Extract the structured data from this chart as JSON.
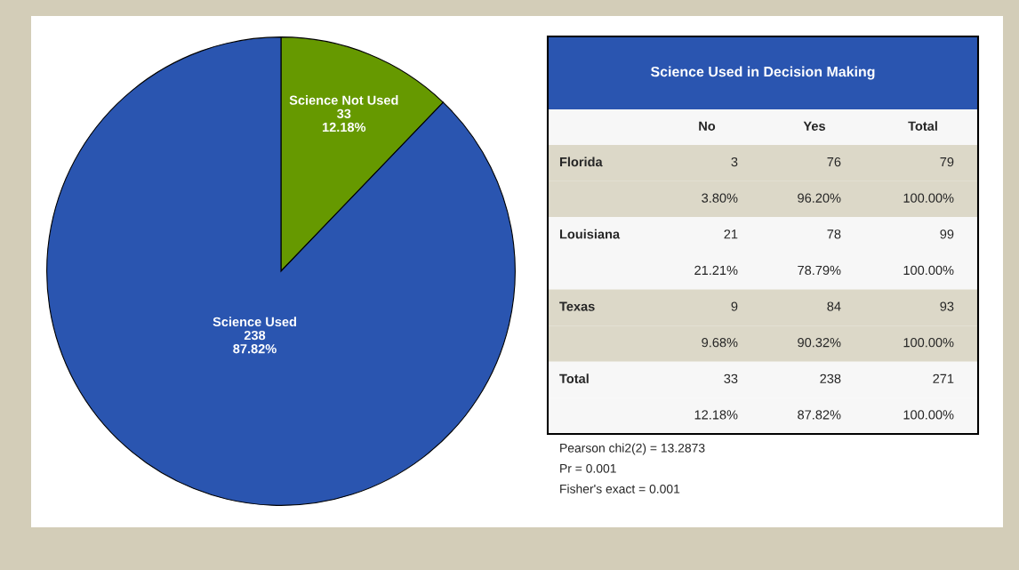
{
  "chart_data": [
    {
      "type": "pie",
      "categories": [
        "Science Not Used",
        "Science Used"
      ],
      "values": [
        33,
        238
      ],
      "colors": [
        "#669900",
        "#2a55b0"
      ],
      "value_labels": [
        "33\n12.18%",
        "238\n87.82%"
      ]
    },
    {
      "type": "other",
      "title": "Science Used in Decision Making",
      "categories": [
        "No",
        "Yes",
        "Total"
      ],
      "y_categories": [
        "Florida",
        null,
        "Louisiana",
        null,
        "Texas",
        null,
        "Total",
        null
      ],
      "cell_labels": [
        [
          "3",
          "76",
          "79"
        ],
        [
          "3.80%",
          "96.20%",
          "100.00%"
        ],
        [
          "21",
          "78",
          "99"
        ],
        [
          "21.21%",
          "78.79%",
          "100.00%"
        ],
        [
          "9",
          "84",
          "93"
        ],
        [
          "9.68%",
          "90.32%",
          "100.00%"
        ],
        [
          "33",
          "238",
          "271"
        ],
        [
          "12.18%",
          "87.82%",
          "100.00%"
        ]
      ],
      "annotations": [
        "Pearson chi2(2) = 13.2873",
        "Pr = 0.001",
        "Fisher's exact = 0.001"
      ]
    }
  ]
}
